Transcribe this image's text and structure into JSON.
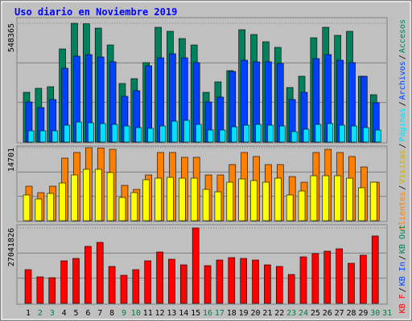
{
  "chart_data": [
    {
      "type": "bar",
      "title": "Uso diario en Noviembre 2019",
      "categories": [
        "1",
        "2",
        "3",
        "4",
        "5",
        "6",
        "7",
        "8",
        "9",
        "10",
        "11",
        "12",
        "13",
        "14",
        "15",
        "16",
        "17",
        "18",
        "19",
        "20",
        "21",
        "22",
        "23",
        "24",
        "25",
        "26",
        "27",
        "28",
        "29",
        "30",
        "31"
      ],
      "category_colors": [
        "#000000",
        "#008040",
        "#008040",
        "#000000",
        "#000000",
        "#000000",
        "#000000",
        "#000000",
        "#008040",
        "#008040",
        "#000000",
        "#000000",
        "#000000",
        "#000000",
        "#000000",
        "#008040",
        "#008040",
        "#000000",
        "#000000",
        "#000000",
        "#000000",
        "#000000",
        "#008040",
        "#008040",
        "#000000",
        "#000000",
        "#000000",
        "#000000",
        "#000000",
        "#008040",
        "#008040"
      ],
      "legend_separator": "/",
      "ylim": [
        0,
        548365
      ],
      "yticks": [
        548365
      ],
      "series": [
        {
          "name": "Accesos",
          "color": "#00805c",
          "values": [
            229700,
            248200,
            255600,
            429800,
            548365,
            546000,
            526100,
            448300,
            270500,
            292700,
            366800,
            529800,
            511300,
            478000,
            448300,
            229700,
            277900,
            329700,
            518700,
            496500,
            463100,
            437200,
            251900,
            303800,
            481600,
            529800,
            492800,
            511300,
            303800,
            218600,
            null
          ]
        },
        {
          "name": "Archivos",
          "color": "#0040ff",
          "values": [
            185200,
            159300,
            196400,
            340900,
            396400,
            403800,
            392700,
            370500,
            211200,
            237100,
            352000,
            389000,
            407600,
            389000,
            366800,
            185200,
            207500,
            326000,
            377900,
            370500,
            370500,
            363100,
            196400,
            229700,
            385300,
            403800,
            377900,
            366800,
            303800,
            181500,
            null
          ]
        },
        {
          "name": "Páginas",
          "color": "#00e0ff",
          "values": [
            51900,
            51900,
            51900,
            77800,
            92600,
            88900,
            85200,
            81500,
            74100,
            66700,
            63000,
            74100,
            96300,
            100000,
            81500,
            55600,
            55600,
            70400,
            77800,
            81500,
            77800,
            74100,
            48200,
            59300,
            81500,
            85200,
            77800,
            74100,
            66700,
            55600,
            null
          ]
        }
      ]
    },
    {
      "type": "bar",
      "ylim": [
        0,
        14701
      ],
      "yticks": [
        14701
      ],
      "series": [
        {
          "name": "Clientes",
          "color": "#ff8000",
          "values": [
            6945,
            5650,
            6945,
            12600,
            13730,
            14701,
            14650,
            14370,
            7105,
            6300,
            9205,
            13730,
            13730,
            12760,
            12760,
            9205,
            9205,
            11300,
            13730,
            12920,
            11300,
            11300,
            8880,
            7750,
            13730,
            14370,
            13730,
            12920,
            10820,
            7750,
            null
          ]
        },
        {
          "name": "Visitas",
          "color": "#ffff00",
          "values": [
            5170,
            4360,
            5490,
            7590,
            9205,
            10340,
            10340,
            9690,
            4680,
            5650,
            8240,
            8560,
            8720,
            8560,
            8560,
            6300,
            5810,
            7750,
            8400,
            8075,
            7750,
            8560,
            5170,
            5980,
            9045,
            9045,
            9045,
            8560,
            6620,
            7750,
            null
          ]
        }
      ]
    },
    {
      "type": "bar",
      "ylim": [
        0,
        27041826
      ],
      "yticks": [
        27041826
      ],
      "legend_names": [
        {
          "name": "KB Out",
          "color": "#00805c"
        },
        {
          "name": "KB In",
          "color": "#0040ff"
        }
      ],
      "series": [
        {
          "name": "KB F",
          "color": "#ff0000",
          "values": [
            12083400,
            9494100,
            9206400,
            15248100,
            16111200,
            20426700,
            21865200,
            13234200,
            10069500,
            12083400,
            15248100,
            18412800,
            15823500,
            13809600,
            27041826,
            13521900,
            15535800,
            16398900,
            16111200,
            15535800,
            13809600,
            13234200,
            10357200,
            16686600,
            17837400,
            18700500,
            19563600,
            14385000,
            17262000,
            24166800,
            null
          ]
        }
      ]
    }
  ]
}
